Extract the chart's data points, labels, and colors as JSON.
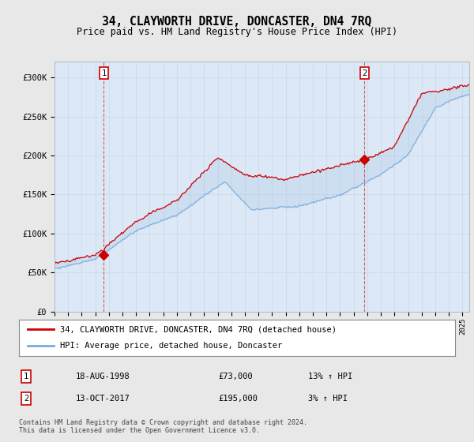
{
  "title": "34, CLAYWORTH DRIVE, DONCASTER, DN4 7RQ",
  "subtitle": "Price paid vs. HM Land Registry's House Price Index (HPI)",
  "red_label": "34, CLAYWORTH DRIVE, DONCASTER, DN4 7RQ (detached house)",
  "blue_label": "HPI: Average price, detached house, Doncaster",
  "transaction1_num": "1",
  "transaction1_date": "18-AUG-1998",
  "transaction1_price": "£73,000",
  "transaction1_hpi": "13% ↑ HPI",
  "transaction2_num": "2",
  "transaction2_date": "13-OCT-2017",
  "transaction2_price": "£195,000",
  "transaction2_hpi": "3% ↑ HPI",
  "footnote": "Contains HM Land Registry data © Crown copyright and database right 2024.\nThis data is licensed under the Open Government Licence v3.0.",
  "ylim_min": 0,
  "ylim_max": 320000,
  "yticks": [
    0,
    50000,
    100000,
    150000,
    200000,
    250000,
    300000
  ],
  "ytick_labels": [
    "£0",
    "£50K",
    "£100K",
    "£150K",
    "£200K",
    "£250K",
    "£300K"
  ],
  "background_color": "#e8e8e8",
  "plot_background": "#dce8f5",
  "red_color": "#cc0000",
  "blue_color": "#7aabdb",
  "vline_color": "#cc0000",
  "marker1_x": 1998.63,
  "marker1_y": 73000,
  "marker2_x": 2017.79,
  "marker2_y": 195000,
  "xmin": 1995.0,
  "xmax": 2025.5
}
